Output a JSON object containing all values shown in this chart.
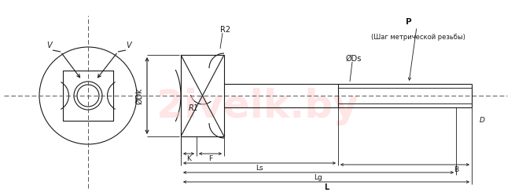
{
  "bg_color": "#ffffff",
  "line_color": "#1a1a1a",
  "dash_color": "#555555",
  "watermark_color": "#ffcccc",
  "figsize": [
    6.55,
    2.51
  ],
  "dpi": 100,
  "annotations": {
    "V_left": "V",
    "V_right": "V",
    "R2": "R2",
    "R1": "R1",
    "Dk": "ØDk",
    "Ds": "ØDs",
    "P": "P",
    "P_sub": "(Шаг метрической резьбы)",
    "K": "K",
    "F": "F",
    "Ls": "Ls",
    "Lg": "Lg",
    "L": "L",
    "B": "B",
    "D": "D"
  }
}
